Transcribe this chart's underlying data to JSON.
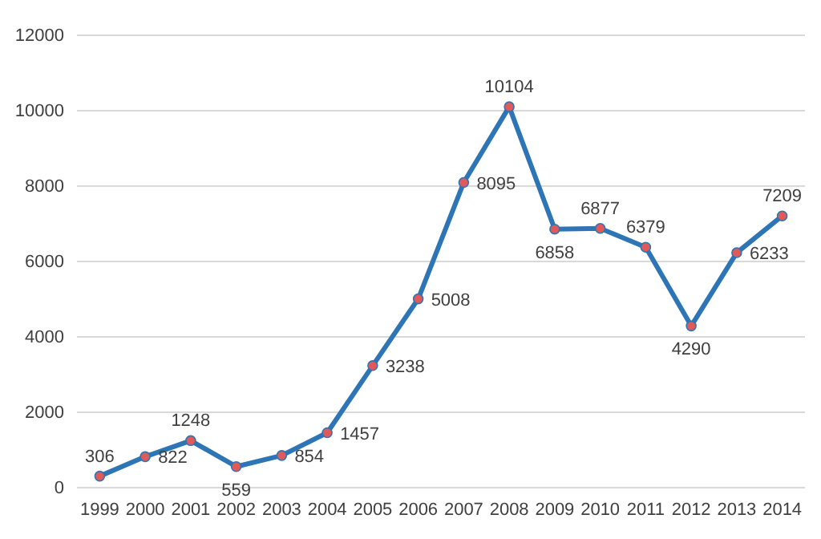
{
  "chart_data": {
    "type": "line",
    "categories": [
      "1999",
      "2000",
      "2001",
      "2002",
      "2003",
      "2004",
      "2005",
      "2006",
      "2007",
      "2008",
      "2009",
      "2010",
      "2011",
      "2012",
      "2013",
      "2014"
    ],
    "series": [
      {
        "color": "#2e75b6",
        "values": [
          306,
          822,
          1248,
          559,
          854,
          1457,
          3238,
          5008,
          8095,
          10104,
          6858,
          6877,
          6379,
          4290,
          6233,
          7209
        ]
      }
    ],
    "ylim": [
      0,
      12000
    ],
    "yticks": [
      0,
      2000,
      4000,
      6000,
      8000,
      10000,
      12000
    ],
    "grid": "y",
    "marker": "circle",
    "line_style": "solid",
    "data_labels": true
  }
}
